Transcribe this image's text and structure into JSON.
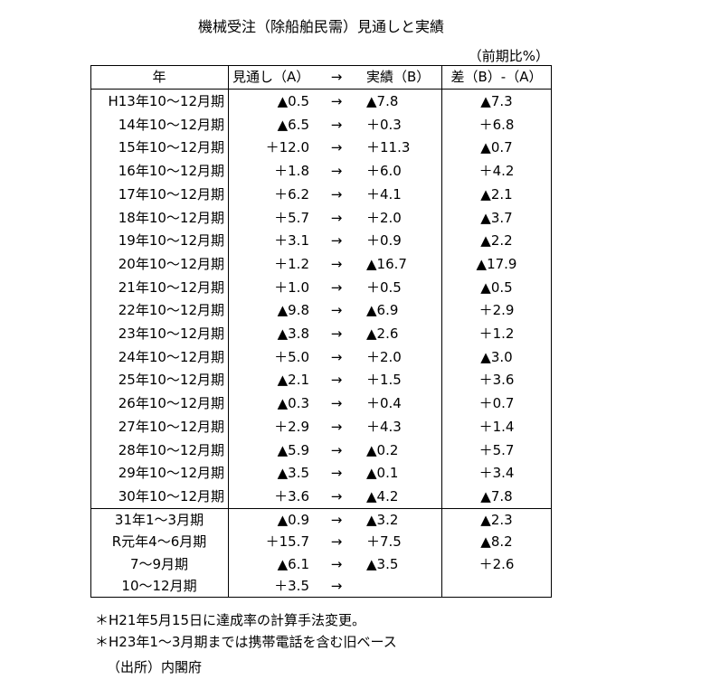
{
  "title": "機械受注（除船舶民需）見通しと実績",
  "unit": "（前期比%）",
  "table": {
    "header": [
      "年",
      "見通し（A）",
      "→",
      "実績（B）",
      "差（B）-（A）"
    ],
    "rows": [
      [
        "H13年10～12月期",
        "▲0.5",
        "→",
        "▲7.8",
        "▲7.3"
      ],
      [
        "14年10～12月期",
        "▲6.5",
        "→",
        "＋0.3",
        "＋6.8"
      ],
      [
        "15年10～12月期",
        "＋12.0",
        "→",
        "＋11.3",
        "▲0.7"
      ],
      [
        "16年10～12月期",
        "＋1.8",
        "→",
        "＋6.0",
        "＋4.2"
      ],
      [
        "17年10～12月期",
        "＋6.2",
        "→",
        "＋4.1",
        "▲2.1"
      ],
      [
        "18年10～12月期",
        "＋5.7",
        "→",
        "＋2.0",
        "▲3.7"
      ],
      [
        "19年10～12月期",
        "＋3.1",
        "→",
        "＋0.9",
        "▲2.2"
      ],
      [
        "20年10～12月期",
        "＋1.2",
        "→",
        "▲16.7",
        "▲17.9"
      ],
      [
        "21年10～12月期",
        "＋1.0",
        "→",
        "＋0.5",
        "▲0.5"
      ],
      [
        "22年10～12月期",
        "▲9.8",
        "→",
        "▲6.9",
        "＋2.9"
      ],
      [
        "23年10～12月期",
        "▲3.8",
        "→",
        "▲2.6",
        "＋1.2"
      ],
      [
        "24年10～12月期",
        "＋5.0",
        "→",
        "＋2.0",
        "▲3.0"
      ],
      [
        "25年10～12月期",
        "▲2.1",
        "→",
        "＋1.5",
        "＋3.6"
      ],
      [
        "26年10～12月期",
        "▲0.3",
        "→",
        "＋0.4",
        "＋0.7"
      ],
      [
        "27年10～12月期",
        "＋2.9",
        "→",
        "＋4.3",
        "＋1.4"
      ],
      [
        "28年10～12月期",
        "▲5.9",
        "→",
        "▲0.2",
        "＋5.7"
      ],
      [
        "29年10～12月期",
        "▲3.5",
        "→",
        "▲0.1",
        "＋3.4"
      ],
      [
        "30年10～12月期",
        "＋3.6",
        "→",
        "▲4.2",
        "▲7.8"
      ],
      [
        "31年1～3月期",
        "▲0.9",
        "→",
        "▲3.2",
        "▲2.3"
      ],
      [
        "R元年4～6月期",
        "＋15.7",
        "→",
        "＋7.5",
        "▲8.2"
      ],
      [
        "7～9月期",
        "▲6.1",
        "→",
        "▲3.5",
        "＋2.6"
      ],
      [
        "10～12月期",
        "＋3.5",
        "→"
      ]
    ]
  },
  "notes": [
    "＊H21年5月15日に達成率の計算手法変更。",
    "＊H23年1～3月期までは携帯電話を含む旧ベース",
    "（出所）内閣府"
  ]
}
